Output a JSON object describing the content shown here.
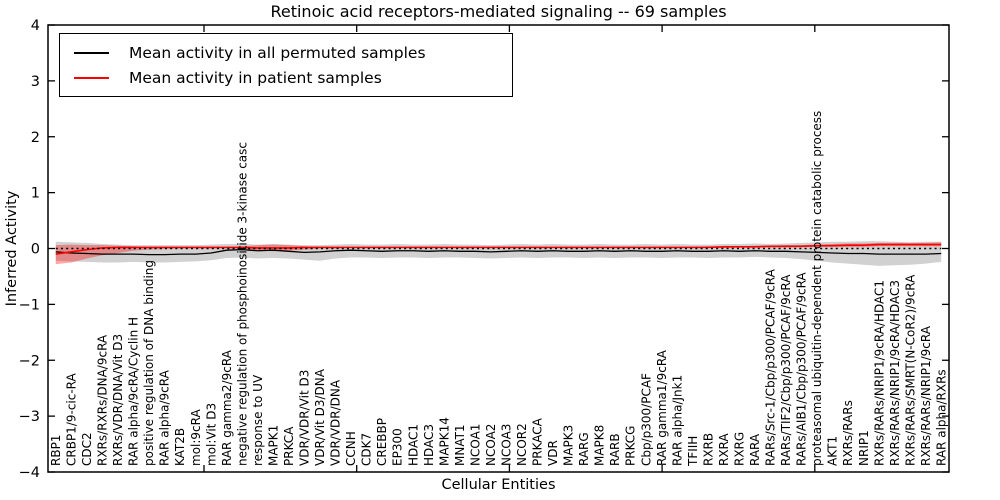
{
  "figure": {
    "title": "Retinoic acid receptors-mediated signaling -- 69 samples",
    "xlabel": "Cellular Entities",
    "ylabel": "Inferred Activity"
  },
  "legend": {
    "entries": [
      {
        "label": "Mean activity in all permuted samples",
        "color": "#000000"
      },
      {
        "label": "Mean activity in patient samples",
        "color": "#ff0000"
      }
    ]
  },
  "chart_data": {
    "type": "line",
    "title": "Retinoic acid receptors-mediated signaling -- 69 samples",
    "xlabel": "Cellular Entities",
    "ylabel": "Inferred Activity",
    "ylim": [
      -4,
      4
    ],
    "yticks": [
      4,
      3,
      2,
      1,
      0,
      -1,
      -2,
      -3,
      -4
    ],
    "ytick_labels": [
      "4",
      "3",
      "2",
      "1",
      "0",
      "−1",
      "−2",
      "−3",
      "−4"
    ],
    "grid": false,
    "legend_position": "upper left",
    "zero_reference": 0,
    "categories": [
      "RBP1",
      "CRBP1/9-cic-RA",
      "CDC2",
      "RXRs/RXRs/DNA/9cRA",
      "RXRs/VDR/DNA/Vit D3",
      "RAR alpha/9cRA/Cyclin H",
      "positive regulation of DNA binding",
      "RAR alpha/9cRA",
      "KAT2B",
      "mol:9cRA",
      "mol:Vit D3",
      "RAR gamma2/9cRA",
      "negative regulation of phosphoinositide 3-kinase casc",
      "response to UV",
      "MAPK1",
      "PRKCA",
      "VDR/VDR/Vit D3",
      "VDR/Vit D3/DNA",
      "VDR/VDR/DNA",
      "CCNH",
      "CDK7",
      "CREBBP",
      "EP300",
      "HDAC1",
      "HDAC3",
      "MAPK14",
      "MNAT1",
      "NCOA1",
      "NCOA2",
      "NCOA3",
      "NCOR2",
      "PRKACA",
      "VDR",
      "MAPK3",
      "RARG",
      "MAPK8",
      "RARB",
      "PRKCG",
      "Cbp/p300/PCAF",
      "RAR gamma1/9cRA",
      "RAR alpha/Jnk1",
      "TFIIH",
      "RXRB",
      "RXRA",
      "RXRG",
      "RARA",
      "RARs/Src-1/Cbp/p300/PCAF/9cRA",
      "RARs/TIF2/Cbp/p300/PCAF/9cRA",
      "RARs/AIB1/Cbp/p300/PCAF/9cRA",
      "proteasomal ubiquitin-dependent protein catabolic process",
      "AKT1",
      "RXRs/RARs",
      "NRIP1",
      "RXRs/RARs/NRIP1/9cRA/HDAC1",
      "RXRs/RARs/NRIP1/9cRA/HDAC3",
      "RXRs/RARs/SMRT(N-CoR2)/9cRA",
      "RXRs/RARs/NRIP1/9cRA",
      "RAR alpha/RXRs"
    ],
    "series": [
      {
        "name": "Mean activity in all permuted samples",
        "color": "#000000",
        "width": 1.3,
        "style": "solid",
        "values": [
          -0.06,
          -0.08,
          -0.09,
          -0.1,
          -0.1,
          -0.1,
          -0.11,
          -0.11,
          -0.1,
          -0.1,
          -0.08,
          -0.03,
          -0.02,
          -0.04,
          -0.03,
          -0.05,
          -0.07,
          -0.06,
          -0.04,
          -0.03,
          -0.04,
          -0.05,
          -0.04,
          -0.04,
          -0.05,
          -0.04,
          -0.05,
          -0.05,
          -0.06,
          -0.05,
          -0.04,
          -0.05,
          -0.04,
          -0.05,
          -0.05,
          -0.04,
          -0.05,
          -0.04,
          -0.05,
          -0.05,
          -0.04,
          -0.05,
          -0.05,
          -0.04,
          -0.05,
          -0.04,
          -0.05,
          -0.05,
          -0.06,
          -0.07,
          -0.08,
          -0.09,
          -0.09,
          -0.1,
          -0.1,
          -0.1,
          -0.1,
          -0.09
        ]
      },
      {
        "name": "Mean activity in patient samples",
        "color": "#ff0000",
        "width": 1.6,
        "style": "solid",
        "values": [
          -0.1,
          -0.06,
          -0.02,
          0.01,
          0.02,
          0.02,
          0.02,
          0.02,
          0.02,
          0.02,
          0.02,
          0.02,
          0.02,
          0.01,
          0.01,
          0.01,
          0.02,
          0.02,
          0.02,
          0.02,
          0.02,
          0.02,
          0.02,
          0.02,
          0.02,
          0.02,
          0.02,
          0.02,
          0.02,
          0.02,
          0.02,
          0.02,
          0.02,
          0.02,
          0.02,
          0.02,
          0.02,
          0.02,
          0.02,
          0.02,
          0.02,
          0.02,
          0.02,
          0.03,
          0.03,
          0.03,
          0.04,
          0.04,
          0.04,
          0.05,
          0.05,
          0.06,
          0.06,
          0.07,
          0.07,
          0.07,
          0.07,
          0.07
        ]
      }
    ],
    "bands": [
      {
        "name": "permuted-range",
        "color": "#999999",
        "opacity": 0.45,
        "upper": [
          0.12,
          0.11,
          0.1,
          0.08,
          0.07,
          0.06,
          0.06,
          0.06,
          0.06,
          0.06,
          0.07,
          0.08,
          0.08,
          0.07,
          0.08,
          0.07,
          0.06,
          0.06,
          0.07,
          0.08,
          0.07,
          0.07,
          0.08,
          0.07,
          0.07,
          0.08,
          0.07,
          0.07,
          0.06,
          0.07,
          0.08,
          0.07,
          0.08,
          0.07,
          0.07,
          0.08,
          0.07,
          0.07,
          0.08,
          0.07,
          0.08,
          0.07,
          0.07,
          0.08,
          0.08,
          0.09,
          0.08,
          0.09,
          0.1,
          0.11,
          0.12,
          0.12,
          0.13,
          0.13,
          0.12,
          0.11,
          0.12,
          0.12
        ],
        "lower": [
          -0.22,
          -0.23,
          -0.24,
          -0.25,
          -0.25,
          -0.24,
          -0.25,
          -0.25,
          -0.24,
          -0.23,
          -0.21,
          -0.17,
          -0.16,
          -0.18,
          -0.17,
          -0.18,
          -0.2,
          -0.22,
          -0.18,
          -0.16,
          -0.16,
          -0.17,
          -0.16,
          -0.16,
          -0.17,
          -0.16,
          -0.16,
          -0.17,
          -0.18,
          -0.17,
          -0.16,
          -0.17,
          -0.16,
          -0.16,
          -0.17,
          -0.16,
          -0.17,
          -0.16,
          -0.16,
          -0.17,
          -0.16,
          -0.16,
          -0.17,
          -0.16,
          -0.16,
          -0.15,
          -0.16,
          -0.17,
          -0.19,
          -0.22,
          -0.25,
          -0.27,
          -0.29,
          -0.31,
          -0.3,
          -0.29,
          -0.27,
          -0.24
        ]
      },
      {
        "name": "patient-range",
        "color": "#ff0000",
        "opacity": 0.35,
        "upper": [
          0.06,
          0.07,
          0.06,
          0.06,
          0.05,
          0.04,
          0.03,
          0.03,
          0.03,
          0.03,
          0.03,
          0.03,
          0.04,
          0.06,
          0.07,
          0.06,
          0.04,
          0.03,
          0.03,
          0.03,
          0.03,
          0.03,
          0.03,
          0.03,
          0.03,
          0.03,
          0.03,
          0.03,
          0.03,
          0.03,
          0.03,
          0.03,
          0.03,
          0.03,
          0.03,
          0.03,
          0.03,
          0.03,
          0.03,
          0.03,
          0.03,
          0.03,
          0.04,
          0.04,
          0.04,
          0.05,
          0.05,
          0.06,
          0.06,
          0.07,
          0.08,
          0.09,
          0.09,
          0.1,
          0.1,
          0.1,
          0.1,
          0.11
        ],
        "lower": [
          -0.28,
          -0.25,
          -0.18,
          -0.12,
          -0.08,
          -0.04,
          -0.02,
          -0.01,
          0.0,
          0.0,
          0.0,
          0.0,
          -0.01,
          -0.03,
          -0.05,
          -0.04,
          -0.02,
          0.0,
          0.0,
          0.01,
          0.01,
          0.01,
          0.01,
          0.01,
          0.01,
          0.01,
          0.01,
          0.01,
          0.01,
          0.01,
          0.01,
          0.01,
          0.01,
          0.01,
          0.01,
          0.01,
          0.01,
          0.01,
          0.01,
          0.01,
          0.01,
          0.01,
          0.01,
          0.01,
          0.02,
          0.02,
          0.02,
          0.02,
          0.03,
          0.03,
          0.03,
          0.03,
          0.03,
          0.04,
          0.04,
          0.04,
          0.04,
          0.04
        ]
      }
    ]
  }
}
